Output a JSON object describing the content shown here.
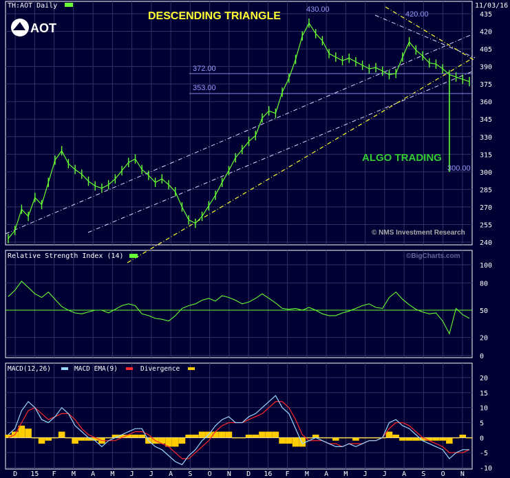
{
  "header": {
    "symbol": "TH:AOT Daily",
    "date": "11/03/16",
    "logo_text": "AOT"
  },
  "annotations": {
    "pattern_title": "DESCENDING TRIANGLE",
    "algo": "ALGO TRADING",
    "copyright": "© NMS Investment Research",
    "watermark": "©BigCharts.com",
    "levels": {
      "l430": "430.00",
      "l420": "420.00",
      "l372": "372.00",
      "l353": "353.00",
      "l300": "300.00"
    }
  },
  "colors": {
    "background": "#000033",
    "price": "#66ff33",
    "grid": "#333366",
    "macd": "#9ad7ff",
    "macd_ema": "#ff2a2a",
    "divergence": "#ffcc00",
    "title": "#ffff33",
    "algo": "#33cc33"
  },
  "chart_data": [
    {
      "type": "line",
      "title": "TH:AOT Daily",
      "x_ticks": [
        "D",
        "15",
        "F",
        "M",
        "A",
        "M",
        "J",
        "J",
        "A",
        "S",
        "O",
        "N",
        "D",
        "16",
        "F",
        "M",
        "A",
        "M",
        "J",
        "J",
        "A",
        "S",
        "O",
        "N"
      ],
      "y_ticks": [
        "435",
        "420",
        "405",
        "390",
        "375",
        "360",
        "345",
        "330",
        "315",
        "300",
        "285",
        "270",
        "255",
        "240"
      ],
      "ylim": [
        238,
        438
      ],
      "series": [
        {
          "values": [
            243,
            250,
            268,
            262,
            278,
            272,
            291,
            310,
            318,
            307,
            302,
            298,
            292,
            288,
            286,
            289,
            294,
            301,
            308,
            311,
            302,
            297,
            291,
            294,
            289,
            283,
            270,
            259,
            256,
            262,
            271,
            280,
            291,
            301,
            312,
            319,
            326,
            331,
            346,
            352,
            350,
            368,
            380,
            396,
            416,
            427,
            418,
            412,
            401,
            398,
            395,
            397,
            394,
            391,
            388,
            389,
            386,
            383,
            384,
            398,
            411,
            404,
            399,
            393,
            392,
            388,
            383,
            381,
            379,
            377
          ]
        }
      ],
      "trendlines_labels": [
        "430.00",
        "420.00",
        "372.00",
        "353.00",
        "300.00"
      ]
    },
    {
      "type": "line",
      "title": "Relative Strength Index (14)",
      "y_ticks": [
        "100",
        "80",
        "50",
        "20",
        "0"
      ],
      "ylim": [
        0,
        100
      ],
      "series": [
        {
          "name": "Relative Strength Index (14)",
          "values": [
            65,
            72,
            82,
            75,
            68,
            64,
            70,
            62,
            54,
            50,
            47,
            46,
            48,
            50,
            50,
            47,
            51,
            55,
            57,
            55,
            46,
            44,
            41,
            40,
            38,
            44,
            52,
            55,
            57,
            61,
            63,
            60,
            66,
            64,
            61,
            57,
            59,
            63,
            68,
            63,
            58,
            52,
            51,
            52,
            50,
            53,
            50,
            46,
            44,
            44,
            47,
            49,
            52,
            55,
            57,
            53,
            52,
            64,
            70,
            62,
            56,
            51,
            48,
            46,
            47,
            38,
            24,
            52,
            45,
            41
          ]
        }
      ],
      "reference_line": 50
    },
    {
      "type": "bar",
      "title": "MACD(12,26)",
      "y_ticks": [
        "20",
        "15",
        "10",
        "5",
        "0",
        "-5",
        "-10"
      ],
      "ylim": [
        -13,
        21
      ],
      "series": [
        {
          "name": "MACD(12,26)",
          "values": [
            1,
            3,
            9,
            12,
            10,
            6,
            5,
            7,
            10,
            8,
            4,
            2,
            0,
            -1,
            -3,
            -1,
            0,
            1,
            2,
            3,
            3,
            -1,
            -3,
            -4,
            -6,
            -8,
            -9,
            -6,
            -4,
            -1,
            1,
            4,
            6,
            7,
            5,
            5,
            7,
            8,
            10,
            12,
            14,
            10,
            8,
            3,
            -2,
            -1,
            0,
            -1,
            -2,
            -3,
            -3,
            -2,
            -3,
            -2,
            -1,
            -1,
            0,
            5,
            6,
            4,
            3,
            1,
            -1,
            -2,
            -3,
            -4,
            -7,
            -5,
            -4,
            -4
          ]
        },
        {
          "name": "MACD EMA(9)",
          "values": [
            0,
            1,
            5,
            9,
            10,
            8,
            6,
            7,
            8,
            8,
            6,
            3,
            1,
            0,
            -1,
            -1,
            -1,
            0,
            1,
            2,
            2,
            1,
            -1,
            -2,
            -3,
            -5,
            -7,
            -7,
            -5,
            -3,
            -1,
            2,
            4,
            5,
            5,
            5,
            6,
            7,
            8,
            10,
            12,
            12,
            10,
            6,
            1,
            -1,
            -1,
            -1,
            -2,
            -2,
            -3,
            -2,
            -2,
            -2,
            -1,
            -1,
            0,
            3,
            5,
            5,
            4,
            2,
            0,
            -1,
            -2,
            -3,
            -5,
            -5,
            -5,
            -4
          ]
        },
        {
          "name": "Divergence",
          "values": [
            1,
            2,
            4,
            3,
            0,
            -2,
            -1,
            0,
            2,
            0,
            -2,
            -1,
            -1,
            -1,
            -2,
            0,
            1,
            1,
            1,
            1,
            1,
            -2,
            -2,
            -2,
            -3,
            -3,
            -2,
            1,
            1,
            2,
            2,
            2,
            2,
            2,
            0,
            0,
            1,
            1,
            2,
            2,
            2,
            -2,
            -2,
            -3,
            -3,
            0,
            1,
            0,
            0,
            -1,
            0,
            0,
            -1,
            0,
            0,
            0,
            0,
            2,
            1,
            -1,
            -1,
            -1,
            -1,
            -1,
            -1,
            -1,
            -2,
            0,
            1,
            0
          ]
        }
      ]
    }
  ]
}
